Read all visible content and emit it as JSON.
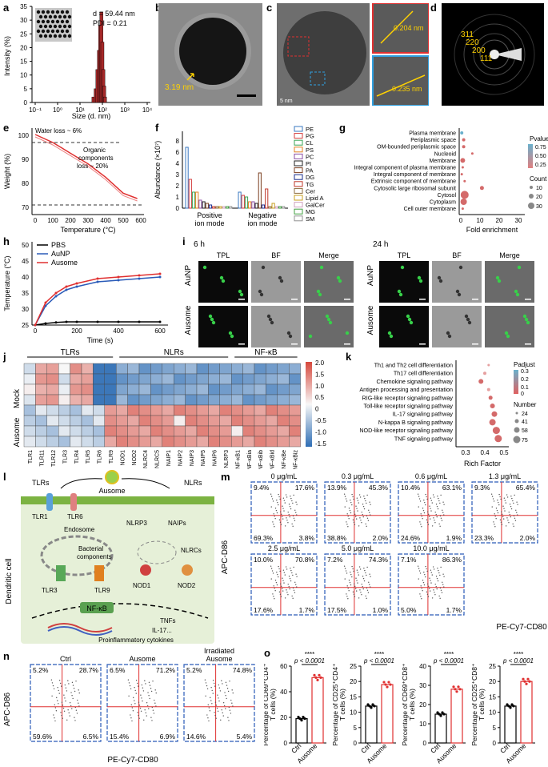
{
  "panel_letters": [
    "a",
    "b",
    "c",
    "d",
    "e",
    "f",
    "g",
    "h",
    "i",
    "j",
    "k",
    "l",
    "m",
    "n",
    "o"
  ],
  "a": {
    "stats_d": "d = 59.44 nm",
    "stats_pdi": "PDI = 0.21",
    "ylabel": "Intensity (%)",
    "xlabel": "Size (d. nm)",
    "yticks": [
      "0",
      "5",
      "10",
      "15",
      "20",
      "25",
      "30",
      "35"
    ],
    "xticks": [
      "10⁻¹",
      "10⁰",
      "10¹",
      "10²",
      "10³",
      "10⁴"
    ]
  },
  "b": {
    "lattice": "3.19 nm"
  },
  "c": {
    "scale": "5 nm",
    "d1": "0.204 nm",
    "d2": "0.235 nm"
  },
  "d": {
    "rings": [
      "311",
      "220",
      "200",
      "111"
    ]
  },
  "e": {
    "ylabel": "Weight (%)",
    "xlabel": "Temperature (°C)",
    "note1": "Water loss ~ 6%",
    "note2a": "Organic",
    "note2b": "components",
    "note2c": "loss ~ 20%",
    "yticks": [
      "70",
      "80",
      "90",
      "100"
    ],
    "xticks": [
      "0",
      "100",
      "200",
      "300",
      "400",
      "500",
      "600"
    ]
  },
  "f": {
    "ylabel": "Abundance (×10⁷)",
    "groups": [
      "Positive",
      "ion mode",
      "Negative",
      "ion mode"
    ],
    "yticks": [
      "0",
      "1",
      "2",
      "3",
      "4",
      "6",
      "8"
    ],
    "legend": [
      "PE",
      "PG",
      "CL",
      "PS",
      "PC",
      "PI",
      "PA",
      "DG",
      "TG",
      "Cer",
      "Lipid A",
      "GalCer",
      "MG",
      "SM"
    ],
    "colors": [
      "#3a78c2",
      "#d43c3c",
      "#3aa655",
      "#e08020",
      "#8b4ea6",
      "#222222",
      "#7b3f20",
      "#1a2e8f",
      "#c0392b",
      "#8e6b3c",
      "#c8a020",
      "#d0a0c0",
      "#40a040",
      "#909090"
    ]
  },
  "g": {
    "terms": [
      "Plasma membrane",
      "Periplasmic space",
      "OM-bounded periplasmic space",
      "Nucleoid",
      "Membrane",
      "Integral component of plasma membrane",
      "Integral component of membrane",
      "Extrinsic component of membrane",
      "Cytosolic large ribosomal subunit",
      "Cytosol",
      "Cytoplasm",
      "Cell outer membrane"
    ],
    "xlabel": "Fold enrichment",
    "xticks": [
      "0",
      "10",
      "20",
      "30"
    ],
    "pvalue_title": "Pvalue",
    "pvalue_ticks": [
      "0.75",
      "0.50",
      "0.25"
    ],
    "count_title": "Count",
    "count_ticks": [
      "10",
      "20",
      "30"
    ]
  },
  "h": {
    "ylabel": "Temperature (°C)",
    "xlabel": "Time (s)",
    "legend": [
      "PBS",
      "AuNP",
      "Ausome"
    ],
    "yticks": [
      "25",
      "30",
      "35",
      "40",
      "45",
      "50"
    ],
    "xticks": [
      "0",
      "200",
      "400",
      "600"
    ]
  },
  "i": {
    "time1": "6 h",
    "time2": "24 h",
    "cols": [
      "TPL",
      "BF",
      "Merge",
      "TPL",
      "BF",
      "Merge"
    ],
    "rows": [
      "AuNP",
      "Ausome"
    ]
  },
  "j": {
    "groups": [
      "TLRs",
      "NLRs",
      "NF-κB"
    ],
    "rows": [
      "Mock",
      "Ausome"
    ],
    "cols": [
      "TLR1",
      "TLR11",
      "TLR12",
      "TLR3",
      "TLR4",
      "TLR5",
      "TLR6",
      "TLR9",
      "NOD1",
      "NOD2",
      "NLRC4",
      "NLRC5",
      "NAIP1",
      "NAIP2",
      "NAIP3",
      "NAIP5",
      "NAIP6",
      "NLRP3",
      "NF-κB1",
      "NF-κBia",
      "NF-κBib",
      "NF-κBid",
      "NF-κBe",
      "NF-κBiz"
    ],
    "scale": [
      "2.0",
      "1.5",
      "1.0",
      "0.5",
      "0",
      "-0.5",
      "-1.0",
      "-1.5"
    ]
  },
  "k": {
    "terms": [
      "Th1 and Th2 cell differentiation",
      "Th17 cell differentiation",
      "Chemokine signaling pathway",
      "Antigen processing and presentation",
      "RIG-like receptor signaling pathway",
      "Toll-like receptor signaling pathway",
      "IL-17 signaling pathway",
      "N-kappa B signaling pathway",
      "NOD-like receptor signaling pathway",
      "TNF signaling pathway"
    ],
    "xlabel": "Rich Factor",
    "xticks": [
      "0.3",
      "0.4",
      "0.5"
    ],
    "padj_title": "Padjust",
    "padj_ticks": [
      "0.3",
      "0.2",
      "0.1",
      "0"
    ],
    "num_title": "Number",
    "num_ticks": [
      "24",
      "41",
      "58",
      "75"
    ]
  },
  "l": {
    "ausome": "Ausome",
    "tlrs": "TLRs",
    "nlrs": "NLRs",
    "tlr1": "TLR1",
    "tlr6": "TLR6",
    "endosome": "Endosome",
    "bact1": "Bacterial",
    "bact2": "components",
    "nlrp3": "NLRP3",
    "naips": "NAIPs",
    "nlrcs": "NLRCs",
    "tlr3": "TLR3",
    "tlr9": "TLR9",
    "nod1": "NOD1",
    "nod2": "NOD2",
    "nfkb": "NF-κB",
    "tnfs": "TNFs",
    "il17": "IL-17...",
    "cyto": "Proinflammatory cytokines",
    "dc": "Dendritic cell"
  },
  "m": {
    "ylabel": "APC-D86",
    "xlabel": "PE-Cy7-CD80",
    "plots": [
      {
        "conc": "0 μg/mL",
        "ul": "9.4%",
        "ur": "17.6%",
        "ll": "69.3%",
        "lr": "3.8%"
      },
      {
        "conc": "0.3 μg/mL",
        "ul": "13.9%",
        "ur": "45.3%",
        "ll": "38.8%",
        "lr": "2.0%"
      },
      {
        "conc": "0.6 μg/mL",
        "ul": "10.4%",
        "ur": "63.1%",
        "ll": "24.6%",
        "lr": "1.9%"
      },
      {
        "conc": "1.3 μg/mL",
        "ul": "9.3%",
        "ur": "65.4%",
        "ll": "23.3%",
        "lr": "2.0%"
      },
      {
        "conc": "2.5 μg/mL",
        "ul": "10.0%",
        "ur": "70.8%",
        "ll": "17.6%",
        "lr": "1.7%"
      },
      {
        "conc": "5.0 μg/mL",
        "ul": "7.2%",
        "ur": "74.3%",
        "ll": "17.5%",
        "lr": "1.0%"
      },
      {
        "conc": "10.0 μg/mL",
        "ul": "7.1%",
        "ur": "86.3%",
        "ll": "5.0%",
        "lr": "1.7%"
      }
    ]
  },
  "n": {
    "ylabel": "APC-D86",
    "xlabel": "PE-Cy7-CD80",
    "plots": [
      {
        "title": "Ctrl",
        "title2": "",
        "ul": "5.2%",
        "ur": "28.7%",
        "ll": "59.6%",
        "lr": "6.5%"
      },
      {
        "title": "Ausome",
        "title2": "",
        "ul": "6.5%",
        "ur": "71.2%",
        "ll": "15.4%",
        "lr": "6.9%"
      },
      {
        "title": "Irradiated",
        "title2": "Ausome",
        "ul": "5.2%",
        "ur": "74.8%",
        "ll": "14.6%",
        "lr": "5.4%"
      }
    ]
  },
  "o": {
    "sig": "****",
    "p": "p < 0.0001",
    "cats": [
      "Ctrl",
      "Ausome"
    ],
    "plots": [
      {
        "ylabel1": "Percentage of CD69⁺CD4⁺",
        "ylabel2": "T cells (%)",
        "ctrl": 19,
        "ausome": 51,
        "ymax": 60,
        "ticks": [
          "0",
          "20",
          "40",
          "60"
        ]
      },
      {
        "ylabel1": "Percentage of CD25⁺CD4⁺",
        "ylabel2": "T cells (%)",
        "ctrl": 12,
        "ausome": 19,
        "ymax": 25,
        "ticks": [
          "0",
          "5",
          "10",
          "15",
          "20",
          "25"
        ]
      },
      {
        "ylabel1": "Percentage of CD69⁺CD8⁺",
        "ylabel2": "T cells (%)",
        "ctrl": 15,
        "ausome": 28,
        "ymax": 40,
        "ticks": [
          "0",
          "10",
          "20",
          "30",
          "40"
        ]
      },
      {
        "ylabel1": "Percentage of CD25⁺CD8⁺",
        "ylabel2": "T cells (%)",
        "ctrl": 12,
        "ausome": 20,
        "ymax": 25,
        "ticks": [
          "0",
          "5",
          "10",
          "15",
          "20",
          "25"
        ]
      }
    ]
  },
  "chart_data": [
    {
      "type": "bar",
      "panel": "a",
      "x": [
        40,
        50,
        60,
        70,
        80,
        90,
        100,
        110,
        120,
        130
      ],
      "values": [
        2,
        5,
        12,
        19,
        28,
        33,
        22,
        12,
        6,
        2
      ],
      "ylim": [
        0,
        35
      ]
    },
    {
      "type": "line",
      "panel": "e",
      "x": [
        0,
        100,
        150,
        200,
        300,
        400,
        500,
        580
      ],
      "values": [
        100,
        97,
        95,
        93,
        89,
        84,
        78,
        76
      ],
      "ylim": [
        70,
        100
      ]
    },
    {
      "type": "line",
      "panel": "h",
      "x": [
        0,
        50,
        100,
        150,
        200,
        300,
        400,
        500,
        600
      ],
      "series": [
        {
          "name": "PBS",
          "values": [
            25,
            25.5,
            25.8,
            26,
            26,
            26,
            26,
            26,
            26
          ]
        },
        {
          "name": "AuNP",
          "values": [
            25,
            31,
            34,
            36,
            37,
            38.5,
            39,
            39.5,
            40
          ]
        },
        {
          "name": "Ausome",
          "values": [
            25,
            32,
            35,
            37,
            38,
            39.5,
            40,
            40.5,
            41
          ]
        }
      ],
      "ylim": [
        25,
        50
      ]
    },
    {
      "type": "bar",
      "panel": "o",
      "categories": [
        "Ctrl",
        "Ausome"
      ],
      "series": [
        {
          "values": [
            19,
            51
          ]
        },
        {
          "values": [
            12,
            19
          ]
        },
        {
          "values": [
            15,
            28
          ]
        },
        {
          "values": [
            12,
            20
          ]
        }
      ]
    }
  ]
}
